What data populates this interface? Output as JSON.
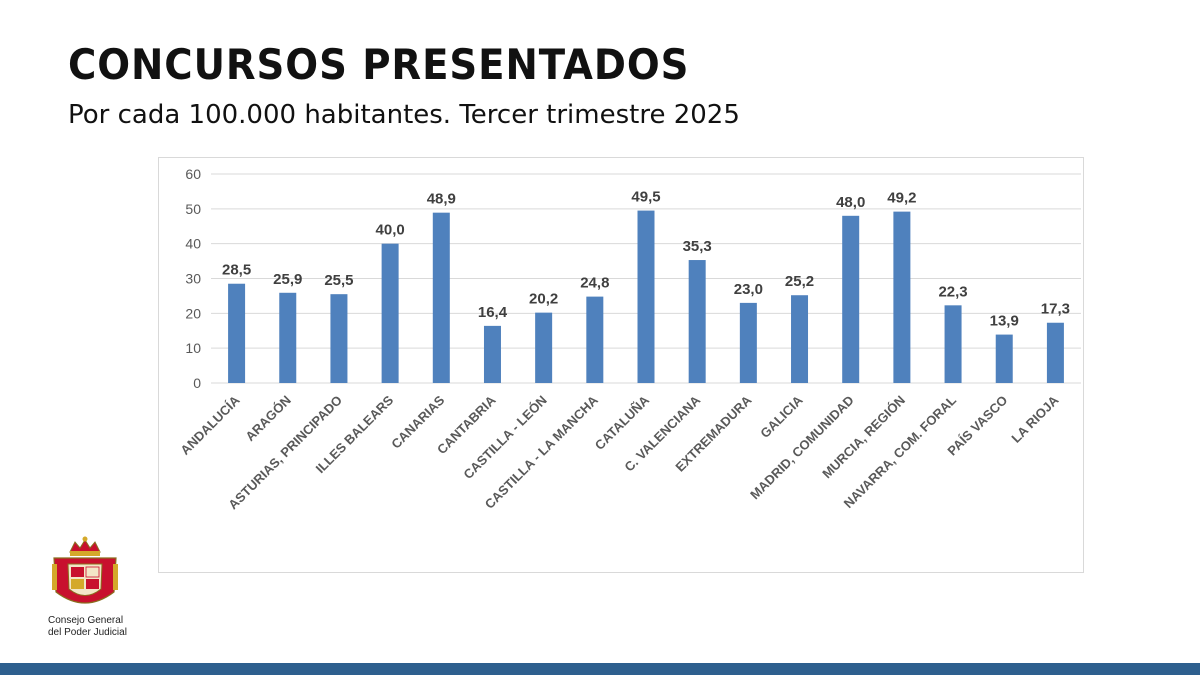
{
  "header": {
    "title": "CONCURSOS PRESENTADOS",
    "subtitle": "Por cada 100.000 habitantes. Tercer trimestre 2025"
  },
  "logo": {
    "line1": "Consejo General",
    "line2": "del Poder Judicial"
  },
  "colors": {
    "bar": "#4f81bd",
    "grid": "#d9d9d9",
    "bottom_bar": "#2e5f8e",
    "logo_red": "#c8102e"
  },
  "chart_data": {
    "type": "bar",
    "title": "",
    "xlabel": "",
    "ylabel": "",
    "ylim": [
      0,
      60
    ],
    "yticks": [
      0,
      10,
      20,
      30,
      40,
      50,
      60
    ],
    "grid": true,
    "categories": [
      "ANDALUCÍA",
      "ARAGÓN",
      "ASTURIAS, PRINCIPADO",
      "ILLES BALEARS",
      "CANARIAS",
      "CANTABRIA",
      "CASTILLA - LEÓN",
      "CASTILLA - LA MANCHA",
      "CATALUÑA",
      "C. VALENCIANA",
      "EXTREMADURA",
      "GALICIA",
      "MADRID, COMUNIDAD",
      "MURCIA, REGIÓN",
      "NAVARRA, COM. FORAL",
      "PAÍS VASCO",
      "LA RIOJA"
    ],
    "values": [
      28.5,
      25.9,
      25.5,
      40.0,
      48.9,
      16.4,
      20.2,
      24.8,
      49.5,
      35.3,
      23.0,
      25.2,
      48.0,
      49.2,
      22.3,
      13.9,
      17.3
    ],
    "data_labels": [
      "28,5",
      "25,9",
      "25,5",
      "40,0",
      "48,9",
      "16,4",
      "20,2",
      "24,8",
      "49,5",
      "35,3",
      "23,0",
      "25,2",
      "48,0",
      "49,2",
      "22,3",
      "13,9",
      "17,3"
    ]
  }
}
